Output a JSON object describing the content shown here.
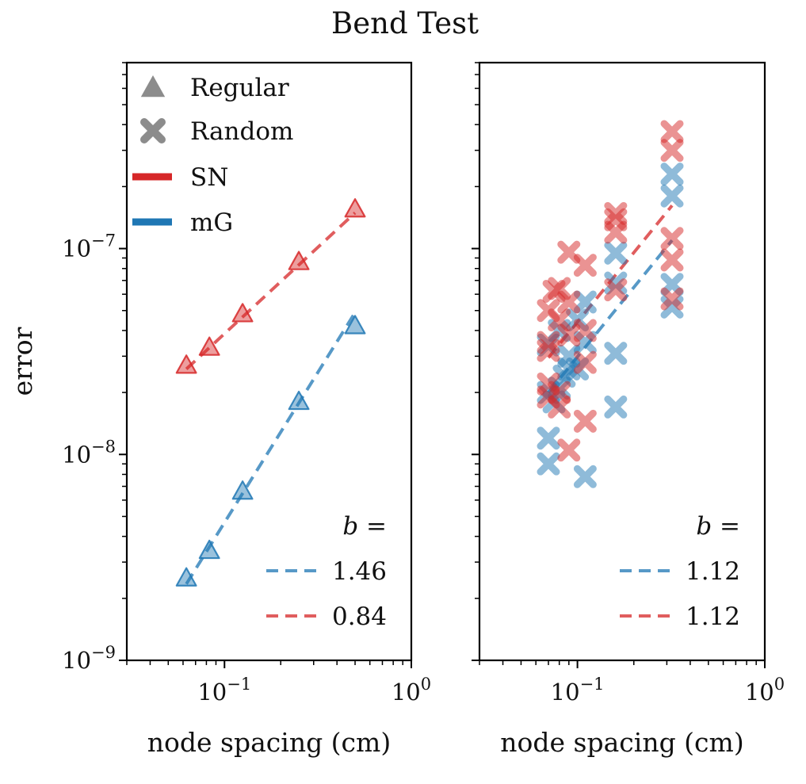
{
  "title": "Bend Test",
  "colors": {
    "SN": "#d62728",
    "mG": "#1f77b4",
    "legend_marker": "#8c8c8c",
    "axis": "#000000"
  },
  "chart_data": [
    {
      "id": "left",
      "type": "scatter",
      "xscale": "log",
      "yscale": "log",
      "xlim": [
        0.03,
        1.0
      ],
      "ylim": [
        1e-09,
        8e-07
      ],
      "xlabel": "node spacing (cm)",
      "ylabel": "error",
      "xticks": [
        {
          "base": "10",
          "exp": "−1",
          "value": 0.1
        },
        {
          "base": "10",
          "exp": "0",
          "value": 1
        }
      ],
      "yticks": [
        {
          "base": "10",
          "exp": "−7",
          "value": 1e-07
        },
        {
          "base": "10",
          "exp": "−8",
          "value": 1e-08
        },
        {
          "base": "10",
          "exp": "−9",
          "value": 1e-09
        }
      ],
      "marker_legend": [
        {
          "marker": "triangle",
          "label": "Regular"
        },
        {
          "marker": "x",
          "label": "Random"
        }
      ],
      "color_legend": [
        {
          "series": "SN",
          "label": "SN"
        },
        {
          "series": "mG",
          "label": "mG"
        }
      ],
      "fit_legend": {
        "title": "b =",
        "entries": [
          {
            "series": "mG",
            "label": "1.46"
          },
          {
            "series": "SN",
            "label": "0.84"
          }
        ]
      },
      "series": [
        {
          "name": "SN",
          "marker": "triangle",
          "points": [
            [
              0.0625,
              2.7e-08
            ],
            [
              0.083,
              3.3e-08
            ],
            [
              0.125,
              4.8e-08
            ],
            [
              0.25,
              8.6e-08
            ],
            [
              0.5,
              1.55e-07
            ]
          ],
          "fit": {
            "slope": 0.84,
            "x_range": [
              0.0625,
              0.5
            ],
            "y_start": 2.6e-08
          }
        },
        {
          "name": "mG",
          "marker": "triangle",
          "points": [
            [
              0.0625,
              2.5e-09
            ],
            [
              0.083,
              3.4e-09
            ],
            [
              0.125,
              6.6e-09
            ],
            [
              0.25,
              1.8e-08
            ],
            [
              0.5,
              4.2e-08
            ]
          ],
          "fit": {
            "slope": 1.46,
            "x_range": [
              0.0625,
              0.5
            ],
            "y_start": 2.35e-09
          }
        }
      ]
    },
    {
      "id": "right",
      "type": "scatter",
      "xscale": "log",
      "yscale": "log",
      "xlim": [
        0.03,
        1.0
      ],
      "ylim": [
        1e-09,
        8e-07
      ],
      "xlabel": "node spacing (cm)",
      "ylabel": "",
      "xticks": [
        {
          "base": "10",
          "exp": "−1",
          "value": 0.1
        },
        {
          "base": "10",
          "exp": "0",
          "value": 1
        }
      ],
      "yticks": [],
      "fit_legend": {
        "title": "b =",
        "entries": [
          {
            "series": "mG",
            "label": "1.12"
          },
          {
            "series": "SN",
            "label": "1.12"
          }
        ]
      },
      "series": [
        {
          "name": "mG",
          "marker": "x",
          "points": [
            [
              0.07,
              1.2e-08
            ],
            [
              0.07,
              9e-09
            ],
            [
              0.07,
              2e-08
            ],
            [
              0.07,
              3.4e-08
            ],
            [
              0.075,
              1.8e-08
            ],
            [
              0.08,
              2.1e-08
            ],
            [
              0.08,
              4e-08
            ],
            [
              0.085,
              2.4e-08
            ],
            [
              0.09,
              2.6e-08
            ],
            [
              0.09,
              3e-08
            ],
            [
              0.1,
              4.5e-08
            ],
            [
              0.1,
              2.6e-08
            ],
            [
              0.11,
              5.5e-08
            ],
            [
              0.11,
              7.8e-09
            ],
            [
              0.11,
              3.5e-08
            ],
            [
              0.16,
              9.5e-08
            ],
            [
              0.16,
              6.8e-08
            ],
            [
              0.16,
              3.1e-08
            ],
            [
              0.16,
              1.7e-08
            ],
            [
              0.32,
              2.3e-07
            ],
            [
              0.32,
              1.8e-07
            ],
            [
              0.32,
              6.7e-08
            ],
            [
              0.32,
              5.2e-08
            ]
          ],
          "fit": {
            "slope": 1.12,
            "x_range": [
              0.07,
              0.32
            ],
            "y_start": 2e-08
          }
        },
        {
          "name": "SN",
          "marker": "x",
          "points": [
            [
              0.07,
              5e-08
            ],
            [
              0.07,
              3.5e-08
            ],
            [
              0.07,
              3.2e-08
            ],
            [
              0.07,
              2.2e-08
            ],
            [
              0.07,
              1.9e-08
            ],
            [
              0.075,
              6.2e-08
            ],
            [
              0.08,
              6.4e-08
            ],
            [
              0.08,
              4.5e-08
            ],
            [
              0.08,
              2e-08
            ],
            [
              0.08,
              1.7e-08
            ],
            [
              0.09,
              9.6e-08
            ],
            [
              0.09,
              5.5e-08
            ],
            [
              0.09,
              3.8e-08
            ],
            [
              0.09,
              1.05e-08
            ],
            [
              0.11,
              8.3e-08
            ],
            [
              0.11,
              4e-08
            ],
            [
              0.11,
              2.8e-08
            ],
            [
              0.11,
              1.45e-08
            ],
            [
              0.16,
              1.48e-07
            ],
            [
              0.16,
              1.38e-07
            ],
            [
              0.16,
              1.2e-07
            ],
            [
              0.16,
              6.3e-08
            ],
            [
              0.32,
              3.7e-07
            ],
            [
              0.32,
              3e-07
            ],
            [
              0.32,
              1.12e-07
            ],
            [
              0.32,
              8.8e-08
            ],
            [
              0.32,
              5.7e-08
            ]
          ],
          "fit": {
            "slope": 1.12,
            "x_range": [
              0.07,
              0.32
            ],
            "y_start": 2.95e-08
          }
        }
      ]
    }
  ]
}
